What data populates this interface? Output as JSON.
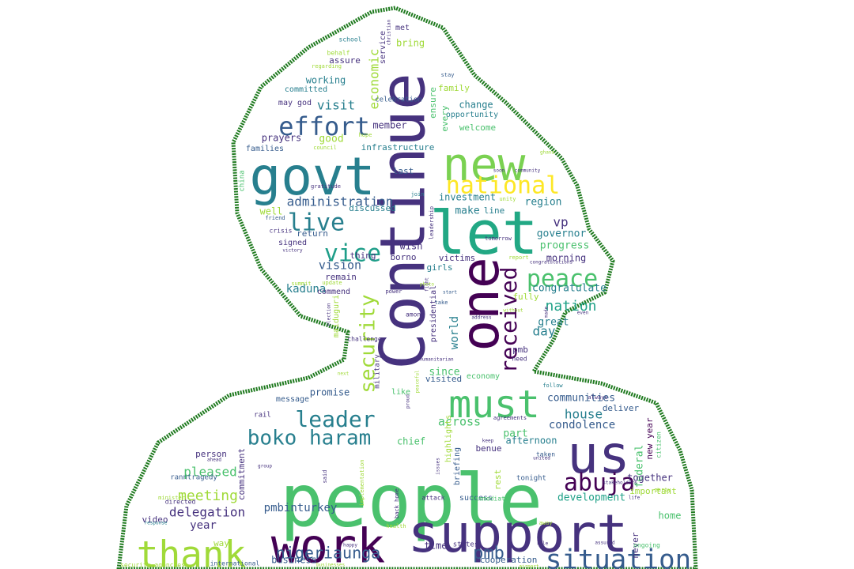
{
  "silhouette": {
    "outline_color": "#1f7a1f",
    "fill": "#ffffff"
  },
  "palette": [
    "#440154",
    "#46327e",
    "#365c8d",
    "#277f8e",
    "#1fa187",
    "#4ac16d",
    "#a0da39",
    "#fde725"
  ],
  "words": [
    {
      "text": "Continue",
      "color": "#46327e",
      "size": 78,
      "rotate": -90
    },
    {
      "text": "people",
      "color": "#4ac16d",
      "size": 92,
      "rotate": 0
    },
    {
      "text": "support",
      "color": "#46327e",
      "size": 66,
      "rotate": 0
    },
    {
      "text": "govt",
      "color": "#277f8e",
      "size": 66,
      "rotate": 0
    },
    {
      "text": "new",
      "color": "#7ad151",
      "size": 58,
      "rotate": 0
    },
    {
      "text": "let",
      "color": "#22a884",
      "size": 76,
      "rotate": 0
    },
    {
      "text": "one",
      "color": "#440154",
      "size": 66,
      "rotate": -90
    },
    {
      "text": "work",
      "color": "#440154",
      "size": 60,
      "rotate": 0
    },
    {
      "text": "us",
      "color": "#46327e",
      "size": 66,
      "rotate": 0
    },
    {
      "text": "must",
      "color": "#4ac16d",
      "size": 48,
      "rotate": 0
    },
    {
      "text": "thank",
      "color": "#a0da39",
      "size": 46,
      "rotate": 0
    },
    {
      "text": "situation",
      "color": "#365c8d",
      "size": 34,
      "rotate": 0
    },
    {
      "text": "effort",
      "color": "#365c8d",
      "size": 32,
      "rotate": 0
    },
    {
      "text": "national",
      "color": "#fde725",
      "size": 30,
      "rotate": 0
    },
    {
      "text": "live",
      "color": "#277f8e",
      "size": 30,
      "rotate": 0
    },
    {
      "text": "vice",
      "color": "#1f9e89",
      "size": 30,
      "rotate": 0
    },
    {
      "text": "peace",
      "color": "#4ac16d",
      "size": 30,
      "rotate": 0
    },
    {
      "text": "received",
      "color": "#440154",
      "size": 28,
      "rotate": -90
    },
    {
      "text": "security",
      "color": "#a0da39",
      "size": 26,
      "rotate": -90
    },
    {
      "text": "leader",
      "color": "#277f8e",
      "size": 28,
      "rotate": 0
    },
    {
      "text": "boko haram",
      "color": "#277f8e",
      "size": 26,
      "rotate": 0
    },
    {
      "text": "abuja",
      "color": "#440154",
      "size": 30,
      "rotate": 0
    },
    {
      "text": "nigeriaunga",
      "color": "#365c8d",
      "size": 20,
      "rotate": 0
    },
    {
      "text": "pmb",
      "color": "#365c8d",
      "size": 22,
      "rotate": 0
    },
    {
      "text": "nation",
      "color": "#1fa187",
      "size": 18,
      "rotate": 0
    },
    {
      "text": "meeting",
      "color": "#a0da39",
      "size": 18,
      "rotate": 0
    },
    {
      "text": "pleased",
      "color": "#4ac16d",
      "size": 16,
      "rotate": 0
    },
    {
      "text": "delegation",
      "color": "#46327e",
      "size": 16,
      "rotate": 0
    },
    {
      "text": "administration",
      "color": "#365c8d",
      "size": 16,
      "rotate": 0
    },
    {
      "text": "economic",
      "color": "#a0da39",
      "size": 16,
      "rotate": -90
    },
    {
      "text": "visit",
      "color": "#277f8e",
      "size": 16,
      "rotate": 0
    },
    {
      "text": "day",
      "color": "#277f8e",
      "size": 16,
      "rotate": 0
    },
    {
      "text": "house",
      "color": "#277f8e",
      "size": 16,
      "rotate": 0
    },
    {
      "text": "condolence",
      "color": "#365c8d",
      "size": 14,
      "rotate": 0
    },
    {
      "text": "development",
      "color": "#1fa187",
      "size": 13,
      "rotate": 0
    },
    {
      "text": "vision",
      "color": "#365c8d",
      "size": 15,
      "rotate": 0
    },
    {
      "text": "kaduna",
      "color": "#277f8e",
      "size": 14,
      "rotate": 0
    },
    {
      "text": "congratulate",
      "color": "#277f8e",
      "size": 13,
      "rotate": 0
    },
    {
      "text": "communities",
      "color": "#365c8d",
      "size": 13,
      "rotate": 0
    },
    {
      "text": "pmbinturkey",
      "color": "#365c8d",
      "size": 14,
      "rotate": 0
    },
    {
      "text": "year",
      "color": "#46327e",
      "size": 14,
      "rotate": 0
    },
    {
      "text": "across",
      "color": "#4ac16d",
      "size": 15,
      "rotate": 0
    },
    {
      "text": "vp",
      "color": "#46327e",
      "size": 16,
      "rotate": 0
    },
    {
      "text": "governor",
      "color": "#277f8e",
      "size": 13,
      "rotate": 0
    },
    {
      "text": "progress",
      "color": "#4ac16d",
      "size": 13,
      "rotate": 0
    },
    {
      "text": "morning",
      "color": "#46327e",
      "size": 12,
      "rotate": 0
    },
    {
      "text": "region",
      "color": "#277f8e",
      "size": 13,
      "rotate": 0
    },
    {
      "text": "make",
      "color": "#277f8e",
      "size": 13,
      "rotate": 0
    },
    {
      "text": "investment",
      "color": "#277f8e",
      "size": 12,
      "rotate": 0
    },
    {
      "text": "great",
      "color": "#277f8e",
      "size": 13,
      "rotate": 0
    },
    {
      "text": "world",
      "color": "#277f8e",
      "size": 14,
      "rotate": -90
    },
    {
      "text": "since",
      "color": "#4ac16d",
      "size": 13,
      "rotate": 0
    },
    {
      "text": "promise",
      "color": "#365c8d",
      "size": 12,
      "rotate": 0
    },
    {
      "text": "chief",
      "color": "#4ac16d",
      "size": 12,
      "rotate": 0
    },
    {
      "text": "part",
      "color": "#4ac16d",
      "size": 13,
      "rotate": 0
    },
    {
      "text": "afternoon",
      "color": "#277f8e",
      "size": 12,
      "rotate": 0
    },
    {
      "text": "deliver",
      "color": "#365c8d",
      "size": 11,
      "rotate": 0
    },
    {
      "text": "federal",
      "color": "#4ac16d",
      "size": 13,
      "rotate": -90
    },
    {
      "text": "new year",
      "color": "#440154",
      "size": 11,
      "rotate": -90
    },
    {
      "text": "together",
      "color": "#46327e",
      "size": 12,
      "rotate": 0
    },
    {
      "text": "important",
      "color": "#a0da39",
      "size": 11,
      "rotate": 0
    },
    {
      "text": "home",
      "color": "#4ac16d",
      "size": 12,
      "rotate": 0
    },
    {
      "text": "never",
      "color": "#46327e",
      "size": 11,
      "rotate": -90
    },
    {
      "text": "business",
      "color": "#365c8d",
      "size": 12,
      "rotate": 0
    },
    {
      "text": "cooperation",
      "color": "#365c8d",
      "size": 11,
      "rotate": 0
    },
    {
      "text": "time",
      "color": "#46327e",
      "size": 12,
      "rotate": 0
    },
    {
      "text": "commitment",
      "color": "#46327e",
      "size": 11,
      "rotate": -90
    },
    {
      "text": "working",
      "color": "#277f8e",
      "size": 12,
      "rotate": 0
    },
    {
      "text": "committed",
      "color": "#277f8e",
      "size": 10,
      "rotate": 0
    },
    {
      "text": "assure",
      "color": "#46327e",
      "size": 11,
      "rotate": 0
    },
    {
      "text": "bring",
      "color": "#a0da39",
      "size": 12,
      "rotate": 0
    },
    {
      "text": "member",
      "color": "#46327e",
      "size": 12,
      "rotate": 0
    },
    {
      "text": "infrastructure",
      "color": "#277f8e",
      "size": 11,
      "rotate": 0
    },
    {
      "text": "prayers",
      "color": "#46327e",
      "size": 12,
      "rotate": 0
    },
    {
      "text": "good",
      "color": "#a0da39",
      "size": 13,
      "rotate": 0
    },
    {
      "text": "families",
      "color": "#365c8d",
      "size": 10,
      "rotate": 0
    },
    {
      "text": "family",
      "color": "#a0da39",
      "size": 11,
      "rotate": 0
    },
    {
      "text": "change",
      "color": "#277f8e",
      "size": 12,
      "rotate": 0
    },
    {
      "text": "opportunity",
      "color": "#277f8e",
      "size": 10,
      "rotate": 0
    },
    {
      "text": "welcome",
      "color": "#4ac16d",
      "size": 11,
      "rotate": 0
    },
    {
      "text": "ensure",
      "color": "#4ac16d",
      "size": 11,
      "rotate": -90
    },
    {
      "text": "every",
      "color": "#4ac16d",
      "size": 11,
      "rotate": -90
    },
    {
      "text": "discussed",
      "color": "#277f8e",
      "size": 11,
      "rotate": 0
    },
    {
      "text": "thing",
      "color": "#46327e",
      "size": 11,
      "rotate": 0
    },
    {
      "text": "well",
      "color": "#a0da39",
      "size": 12,
      "rotate": 0
    },
    {
      "text": "return",
      "color": "#365c8d",
      "size": 11,
      "rotate": 0
    },
    {
      "text": "signed",
      "color": "#46327e",
      "size": 10,
      "rotate": 0
    },
    {
      "text": "remain",
      "color": "#46327e",
      "size": 11,
      "rotate": 0
    },
    {
      "text": "commend",
      "color": "#46327e",
      "size": 10,
      "rotate": 0
    },
    {
      "text": "wish",
      "color": "#46327e",
      "size": 12,
      "rotate": 0
    },
    {
      "text": "borno",
      "color": "#46327e",
      "size": 11,
      "rotate": 0
    },
    {
      "text": "victims",
      "color": "#46327e",
      "size": 11,
      "rotate": 0
    },
    {
      "text": "girls",
      "color": "#277f8e",
      "size": 11,
      "rotate": 0
    },
    {
      "text": "line",
      "color": "#277f8e",
      "size": 11,
      "rotate": 0
    },
    {
      "text": "last",
      "color": "#365c8d",
      "size": 11,
      "rotate": 0
    },
    {
      "text": "fully",
      "color": "#a0da39",
      "size": 11,
      "rotate": 0
    },
    {
      "text": "pmb",
      "color": "#46327e",
      "size": 11,
      "rotate": 0
    },
    {
      "text": "visited",
      "color": "#365c8d",
      "size": 11,
      "rotate": 0
    },
    {
      "text": "economy",
      "color": "#4ac16d",
      "size": 10,
      "rotate": 0
    },
    {
      "text": "message",
      "color": "#365c8d",
      "size": 10,
      "rotate": 0
    },
    {
      "text": "person",
      "color": "#46327e",
      "size": 11,
      "rotate": 0
    },
    {
      "text": "video",
      "color": "#46327e",
      "size": 11,
      "rotate": 0
    },
    {
      "text": "benue",
      "color": "#46327e",
      "size": 11,
      "rotate": 0
    },
    {
      "text": "success",
      "color": "#365c8d",
      "size": 10,
      "rotate": 0
    },
    {
      "text": "briefing",
      "color": "#365c8d",
      "size": 10,
      "rotate": -90
    },
    {
      "text": "rest",
      "color": "#a0da39",
      "size": 11,
      "rotate": -90
    },
    {
      "text": "way",
      "color": "#a0da39",
      "size": 11,
      "rotate": 0
    },
    {
      "text": "maiduguri",
      "color": "#a0da39",
      "size": 10,
      "rotate": -90
    },
    {
      "text": "presidential",
      "color": "#46327e",
      "size": 10,
      "rotate": -90
    },
    {
      "text": "rail",
      "color": "#46327e",
      "size": 9,
      "rotate": 0
    },
    {
      "text": "military",
      "color": "#46327e",
      "size": 9,
      "rotate": -90
    },
    {
      "text": "like",
      "color": "#4ac16d",
      "size": 10,
      "rotate": 0
    },
    {
      "text": "met",
      "color": "#46327e",
      "size": 10,
      "rotate": 0
    },
    {
      "text": "service",
      "color": "#46327e",
      "size": 10,
      "rotate": -90
    },
    {
      "text": "celebration",
      "color": "#365c8d",
      "size": 9,
      "rotate": 0
    },
    {
      "text": "may god",
      "color": "#46327e",
      "size": 10,
      "rotate": 0
    },
    {
      "text": "highlights",
      "color": "#a0da39",
      "size": 10,
      "rotate": -90
    },
    {
      "text": "tonight",
      "color": "#365c8d",
      "size": 9,
      "rotate": 0
    },
    {
      "text": "taken",
      "color": "#365c8d",
      "size": 8,
      "rotate": 0
    },
    {
      "text": "states",
      "color": "#46327e",
      "size": 9,
      "rotate": 0
    },
    {
      "text": "attack",
      "color": "#46327e",
      "size": 8,
      "rotate": 0
    },
    {
      "text": "immediate",
      "color": "#4ac16d",
      "size": 8,
      "rotate": 0
    },
    {
      "text": "china",
      "color": "#4ac16d",
      "size": 9,
      "rotate": -90
    },
    {
      "text": "directed",
      "color": "#46327e",
      "size": 8,
      "rotate": 0
    },
    {
      "text": "ranntragedy",
      "color": "#365c8d",
      "size": 9,
      "rotate": 0
    },
    {
      "text": "security agencies",
      "color": "#a0da39",
      "size": 8,
      "rotate": 0
    },
    {
      "text": "international",
      "color": "#365c8d",
      "size": 8,
      "rotate": 0
    },
    {
      "text": "ongoing",
      "color": "#4ac16d",
      "size": 8,
      "rotate": 0
    },
    {
      "text": "citizen",
      "color": "#4ac16d",
      "size": 8,
      "rotate": -90
    },
    {
      "text": "challenge",
      "color": "#46327e",
      "size": 8,
      "rotate": 0
    },
    {
      "text": "need",
      "color": "#46327e",
      "size": 8,
      "rotate": 0
    },
    {
      "text": "among",
      "color": "#46327e",
      "size": 8,
      "rotate": 0
    },
    {
      "text": "crisis",
      "color": "#46327e",
      "size": 8,
      "rotate": 0
    },
    {
      "text": "school",
      "color": "#277f8e",
      "size": 8,
      "rotate": 0
    },
    {
      "text": "behalf",
      "color": "#a0da39",
      "size": 8,
      "rotate": 0
    },
    {
      "text": "regarding",
      "color": "#a0da39",
      "size": 7,
      "rotate": 0
    },
    {
      "text": "stay",
      "color": "#365c8d",
      "size": 7,
      "rotate": 0
    },
    {
      "text": "hope",
      "color": "#a0da39",
      "size": 7,
      "rotate": 0
    },
    {
      "text": "council",
      "color": "#a0da39",
      "size": 7,
      "rotate": 0
    },
    {
      "text": "gratitude",
      "color": "#46327e",
      "size": 7,
      "rotate": 0
    },
    {
      "text": "join",
      "color": "#277f8e",
      "size": 7,
      "rotate": 0
    },
    {
      "text": "unity",
      "color": "#a0da39",
      "size": 7,
      "rotate": 0
    },
    {
      "text": "friend",
      "color": "#365c8d",
      "size": 7,
      "rotate": 0
    },
    {
      "text": "victory",
      "color": "#46327e",
      "size": 6,
      "rotate": 0
    },
    {
      "text": "summit",
      "color": "#a0da39",
      "size": 7,
      "rotate": 0
    },
    {
      "text": "update",
      "color": "#a0da39",
      "size": 7,
      "rotate": 0
    },
    {
      "text": "power",
      "color": "#46327e",
      "size": 7,
      "rotate": 0
    },
    {
      "text": "start",
      "color": "#365c8d",
      "size": 6,
      "rotate": 0
    },
    {
      "text": "take",
      "color": "#365c8d",
      "size": 7,
      "rotate": 0
    },
    {
      "text": "address",
      "color": "#46327e",
      "size": 6,
      "rotate": 0
    },
    {
      "text": "tomorrow",
      "color": "#46327e",
      "size": 7,
      "rotate": 0
    },
    {
      "text": "report",
      "color": "#a0da39",
      "size": 7,
      "rotate": 0
    },
    {
      "text": "congratulations",
      "color": "#46327e",
      "size": 6,
      "rotate": 0
    },
    {
      "text": "soon",
      "color": "#46327e",
      "size": 6,
      "rotate": 0
    },
    {
      "text": "community",
      "color": "#46327e",
      "size": 6,
      "rotate": 0
    },
    {
      "text": "ghana",
      "color": "#a0da39",
      "size": 6,
      "rotate": 0
    },
    {
      "text": "follow",
      "color": "#277f8e",
      "size": 7,
      "rotate": 0
    },
    {
      "text": "always",
      "color": "#46327e",
      "size": 7,
      "rotate": 0
    },
    {
      "text": "agreements",
      "color": "#46327e",
      "size": 7,
      "rotate": 0
    },
    {
      "text": "keep",
      "color": "#46327e",
      "size": 6,
      "rotate": 0
    },
    {
      "text": "group",
      "color": "#46327e",
      "size": 6,
      "rotate": 0
    },
    {
      "text": "ahead",
      "color": "#46327e",
      "size": 6,
      "rotate": 0
    },
    {
      "text": "minister",
      "color": "#a0da39",
      "size": 7,
      "rotate": 0
    },
    {
      "text": "response",
      "color": "#277f8e",
      "size": 6,
      "rotate": 0
    },
    {
      "text": "stakeholders",
      "color": "#46327e",
      "size": 6,
      "rotate": 0
    },
    {
      "text": "party",
      "color": "#a0da39",
      "size": 7,
      "rotate": 0
    },
    {
      "text": "assured",
      "color": "#46327e",
      "size": 6,
      "rotate": 0
    },
    {
      "text": "back home",
      "color": "#46327e",
      "size": 7,
      "rotate": -90
    },
    {
      "text": "health",
      "color": "#a0da39",
      "size": 7,
      "rotate": 0
    },
    {
      "text": "happy",
      "color": "#46327e",
      "size": 6,
      "rotate": 0
    },
    {
      "text": "businesses",
      "color": "#a0da39",
      "size": 6,
      "rotate": 0
    },
    {
      "text": "airport",
      "color": "#a0da39",
      "size": 6,
      "rotate": 0
    },
    {
      "text": "implementation",
      "color": "#a0da39",
      "size": 7,
      "rotate": -90
    },
    {
      "text": "election",
      "color": "#46327e",
      "size": 6,
      "rotate": -90
    },
    {
      "text": "leadership",
      "color": "#46327e",
      "size": 7,
      "rotate": -90
    },
    {
      "text": "christian",
      "color": "#46327e",
      "size": 6,
      "rotate": -90
    },
    {
      "text": "proud",
      "color": "#46327e",
      "size": 6,
      "rotate": -90
    },
    {
      "text": "peaceful",
      "color": "#a0da39",
      "size": 6,
      "rotate": -90
    },
    {
      "text": "humanitarian",
      "color": "#46327e",
      "size": 6,
      "rotate": 0
    },
    {
      "text": "without",
      "color": "#a0da39",
      "size": 6,
      "rotate": 0
    },
    {
      "text": "made",
      "color": "#46327e",
      "size": 6,
      "rotate": -90
    },
    {
      "text": "even",
      "color": "#46327e",
      "size": 6,
      "rotate": 0
    },
    {
      "text": "united",
      "color": "#46327e",
      "size": 6,
      "rotate": 0
    },
    {
      "text": "said",
      "color": "#46327e",
      "size": 7,
      "rotate": -90
    },
    {
      "text": "next",
      "color": "#a0da39",
      "size": 6,
      "rotate": 0
    },
    {
      "text": "issues",
      "color": "#46327e",
      "size": 6,
      "rotate": -90
    },
    {
      "text": "role",
      "color": "#46327e",
      "size": 6,
      "rotate": 0
    },
    {
      "text": "away",
      "color": "#a0da39",
      "size": 7,
      "rotate": 0
    },
    {
      "text": "life",
      "color": "#46327e",
      "size": 6,
      "rotate": 0
    },
    {
      "text": "fight",
      "color": "#46327e",
      "size": 6,
      "rotate": -90
    },
    {
      "text": "photo",
      "color": "#a0da39",
      "size": 6,
      "rotate": 0
    }
  ]
}
